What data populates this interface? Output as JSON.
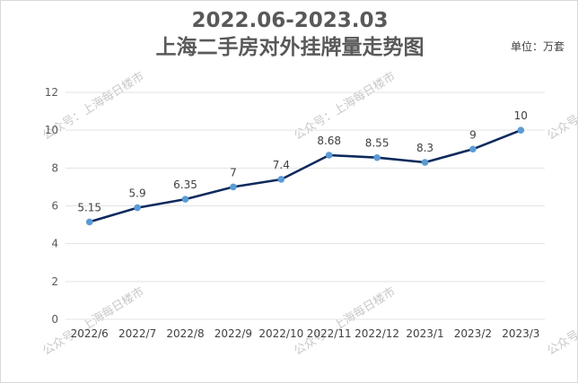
{
  "title_line1": "2022.06-2023.03",
  "title_line2": "上海二手房对外挂牌量走势图",
  "unit": "单位：万套",
  "watermark": "公众号：上海每日楼市",
  "colors": {
    "line": "#0d2a5c",
    "marker": "#5b9bd5",
    "grid": "#e3e3e3"
  },
  "chart_data": {
    "type": "line",
    "categories": [
      "2022/6",
      "2022/7",
      "2022/8",
      "2022/9",
      "2022/10",
      "2022/11",
      "2022/12",
      "2023/1",
      "2023/2",
      "2023/3"
    ],
    "series": [
      {
        "values": [
          5.15,
          5.9,
          6.35,
          7,
          7.4,
          8.68,
          8.55,
          8.3,
          9,
          10
        ]
      }
    ],
    "data_labels": [
      "5.15",
      "5.9",
      "6.35",
      "7",
      "7.4",
      "8.68",
      "8.55",
      "8.3",
      "9",
      "10"
    ],
    "ylim": [
      0,
      12
    ],
    "yticks": [
      0,
      2,
      4,
      6,
      8,
      10,
      12
    ],
    "grid": true
  }
}
